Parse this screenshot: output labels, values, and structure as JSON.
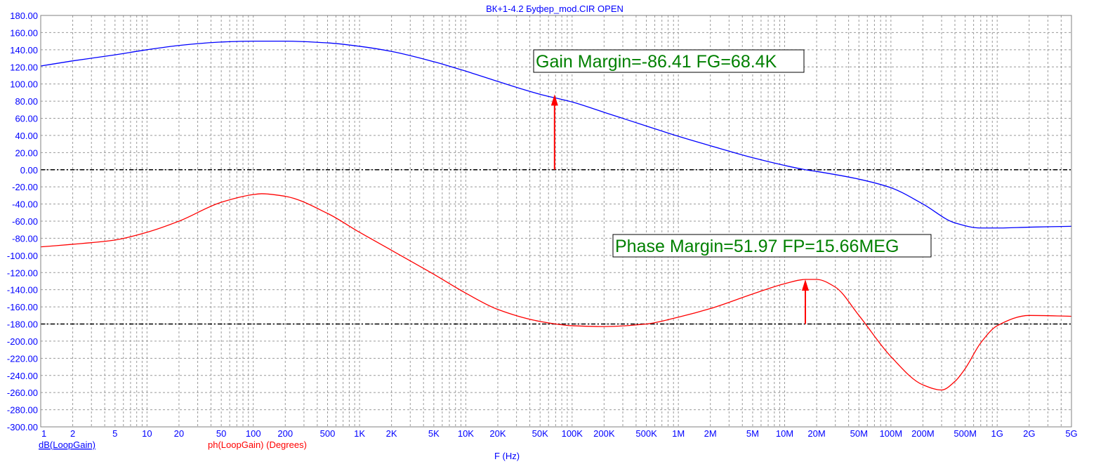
{
  "window": {
    "title": "ВК+1-4.2 Буфер_mod.CIR OPEN"
  },
  "chart_data": {
    "type": "line",
    "title": "ВК+1-4.2 Буфер_mod.CIR OPEN",
    "xlabel": "F (Hz)",
    "xscale": "log",
    "xlim": [
      1,
      5000000000
    ],
    "ylim": [
      -300,
      180
    ],
    "grid": true,
    "y_ticks": [
      "180.00",
      "160.00",
      "140.00",
      "120.00",
      "100.00",
      "80.00",
      "60.00",
      "40.00",
      "20.00",
      "0.00",
      "-20.00",
      "-40.00",
      "-60.00",
      "-80.00",
      "-100.00",
      "-120.00",
      "-140.00",
      "-160.00",
      "-180.00",
      "-200.00",
      "-220.00",
      "-240.00",
      "-260.00",
      "-280.00",
      "-300.00"
    ],
    "x_ticks": [
      {
        "v": 1,
        "label": "1"
      },
      {
        "v": 2,
        "label": "2"
      },
      {
        "v": 5,
        "label": "5"
      },
      {
        "v": 10,
        "label": "10"
      },
      {
        "v": 20,
        "label": "20"
      },
      {
        "v": 50,
        "label": "50"
      },
      {
        "v": 100,
        "label": "100"
      },
      {
        "v": 200,
        "label": "200"
      },
      {
        "v": 500,
        "label": "500"
      },
      {
        "v": 1000,
        "label": "1K"
      },
      {
        "v": 2000,
        "label": "2K"
      },
      {
        "v": 5000,
        "label": "5K"
      },
      {
        "v": 10000,
        "label": "10K"
      },
      {
        "v": 20000,
        "label": "20K"
      },
      {
        "v": 50000,
        "label": "50K"
      },
      {
        "v": 100000,
        "label": "100K"
      },
      {
        "v": 200000,
        "label": "200K"
      },
      {
        "v": 500000,
        "label": "500K"
      },
      {
        "v": 1000000,
        "label": "1M"
      },
      {
        "v": 2000000,
        "label": "2M"
      },
      {
        "v": 5000000,
        "label": "5M"
      },
      {
        "v": 10000000,
        "label": "10M"
      },
      {
        "v": 20000000,
        "label": "20M"
      },
      {
        "v": 50000000,
        "label": "50M"
      },
      {
        "v": 100000000,
        "label": "100M"
      },
      {
        "v": 200000000,
        "label": "200M"
      },
      {
        "v": 500000000,
        "label": "500M"
      },
      {
        "v": 1000000000,
        "label": "1G"
      },
      {
        "v": 2000000000,
        "label": "2G"
      },
      {
        "v": 5000000000,
        "label": "5G"
      }
    ],
    "reference_lines": [
      0,
      -180
    ],
    "series": [
      {
        "name": "dB(LoopGain)",
        "color": "#0000ff",
        "x": [
          1,
          2,
          5,
          10,
          20,
          50,
          100,
          200,
          500,
          1000,
          2000,
          5000,
          10000,
          20000,
          50000,
          100000,
          200000,
          500000,
          1000000,
          2000000,
          5000000,
          10000000,
          15660000,
          20000000,
          50000000,
          100000000,
          200000000,
          400000000,
          700000000,
          1000000000,
          2000000000,
          5000000000
        ],
        "y": [
          121,
          127,
          134,
          140,
          145,
          149,
          150,
          150,
          148,
          144,
          138,
          126,
          115,
          103,
          88,
          79,
          67,
          51,
          39,
          28,
          14,
          5,
          0,
          -2,
          -11,
          -21,
          -40,
          -62,
          -68,
          -68,
          -67,
          -66
        ]
      },
      {
        "name": "ph(LoopGain) (Degrees)",
        "color": "#ff0000",
        "x": [
          1,
          2,
          5,
          10,
          20,
          50,
          100,
          120,
          200,
          500,
          1000,
          2000,
          5000,
          10000,
          20000,
          50000,
          100000,
          200000,
          500000,
          1000000,
          2000000,
          5000000,
          10000000,
          15660000,
          20000000,
          30000000,
          50000000,
          100000000,
          200000000,
          300000000,
          400000000,
          500000000,
          700000000,
          1000000000,
          2000000000,
          5000000000
        ],
        "y": [
          -90,
          -87,
          -82,
          -73,
          -60,
          -38,
          -29,
          -28,
          -31,
          -51,
          -73,
          -94,
          -122,
          -144,
          -163,
          -177,
          -182,
          -183,
          -180,
          -172,
          -162,
          -145,
          -133,
          -128,
          -128,
          -137,
          -170,
          -218,
          -251,
          -257,
          -247,
          -232,
          -202,
          -182,
          -170,
          -171
        ]
      }
    ],
    "annotations": [
      {
        "text": "Gain Margin=-86.41 FG=68.4K",
        "arrow_x": 68400,
        "arrow_from": 0,
        "arrow_to": 88
      },
      {
        "text": "Phase Margin=51.97 FP=15.66MEG",
        "arrow_x": 15660000,
        "arrow_from": -180,
        "arrow_to": -128
      }
    ]
  }
}
